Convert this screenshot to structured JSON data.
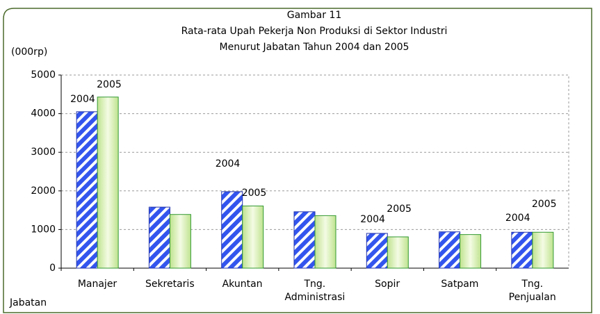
{
  "chart_data": {
    "type": "bar",
    "title": [
      "Gambar 11",
      "Rata-rata Upah Pekerja Non Produksi di Sektor Industri",
      "Menurut Jabatan Tahun 2004 dan 2005"
    ],
    "y_label": "(000rp)",
    "x_label": "Jabatan",
    "categories": [
      "Manajer",
      "Sekretaris",
      "Akuntan",
      "Tng.\nAdministrasi",
      "Sopir",
      "Satpam",
      "Tng.\nPenjualan"
    ],
    "series": [
      {
        "name": "2004",
        "color": "#3355ee",
        "values": [
          4050,
          1580,
          1980,
          1460,
          900,
          940,
          930
        ]
      },
      {
        "name": "2005",
        "color": "#99cc66",
        "values": [
          4430,
          1390,
          1610,
          1360,
          810,
          870,
          930
        ]
      }
    ],
    "annotations": [
      {
        "text": "2004",
        "category": "Manajer"
      },
      {
        "text": "2005",
        "category": "Manajer"
      },
      {
        "text": "2004",
        "category": "Akuntan"
      },
      {
        "text": "2005",
        "category": "Akuntan"
      },
      {
        "text": "2005",
        "category": "Sopir"
      },
      {
        "text": "2004",
        "category": "Sopir"
      },
      {
        "text": "2004",
        "category": "Tng.\nPenjualan"
      },
      {
        "text": "2005",
        "category": "Tng.\nPenjualan"
      }
    ],
    "ylim": [
      0,
      5000
    ],
    "yticks": [
      0,
      1000,
      2000,
      3000,
      4000,
      5000
    ],
    "grid": true
  }
}
